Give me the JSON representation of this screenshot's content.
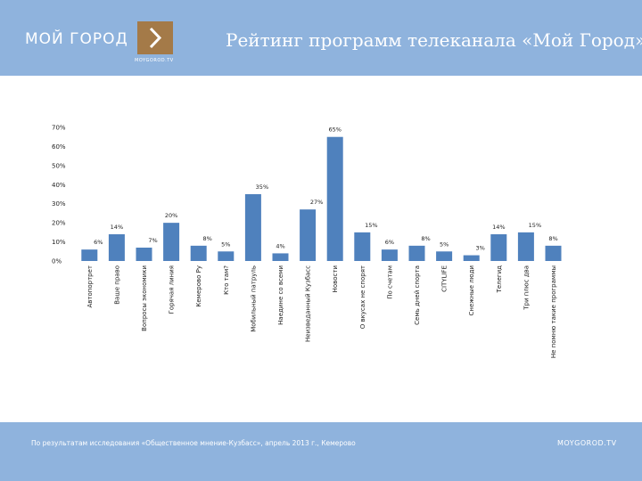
{
  "header": {
    "brand": "МОЙ ГОРОД",
    "logo_caption": "MOYGOROD.TV",
    "title": "Рейтинг программ телеканала «Мой Город»",
    "bg_color": "#8fb3dd",
    "logo_color": "#a47a48"
  },
  "footer": {
    "note": "По результатам исследования «Общественное мнение-Кузбасс», апрель 2013 г., Кемерово",
    "site": "MOYGOROD.TV"
  },
  "chart_data": {
    "type": "bar",
    "bar_color": "#4f81bd",
    "ylim": [
      0,
      70
    ],
    "yticks": [
      "0%",
      "10%",
      "20%",
      "30%",
      "40%",
      "50%",
      "60%",
      "70%"
    ],
    "categories": [
      "Автопортрет",
      "Ваше право",
      "Вопросы экономики",
      "Горячая линия",
      "Кемерово Ру",
      "Кто там?",
      "Мобильный патруль",
      "Наедине со всеми",
      "Неизведанный Кузбасс",
      "Новости",
      "О вкусах не спорят",
      "По счетам",
      "Семь дней спорта",
      "CITYLIFE",
      "Снежные люди",
      "Телегид",
      "Три плюс два",
      "Не помню такие программы"
    ],
    "values": [
      6,
      14,
      7,
      20,
      8,
      5,
      35,
      4,
      27,
      65,
      15,
      6,
      8,
      5,
      3,
      14,
      15,
      8
    ],
    "labels": [
      "6%",
      "14%",
      "7%",
      "20%",
      "8%",
      "5%",
      "35%",
      "4%",
      "27%",
      "65%",
      "15%",
      "6%",
      "8%",
      "5%",
      "3%",
      "14%",
      "15%",
      "8%"
    ]
  }
}
